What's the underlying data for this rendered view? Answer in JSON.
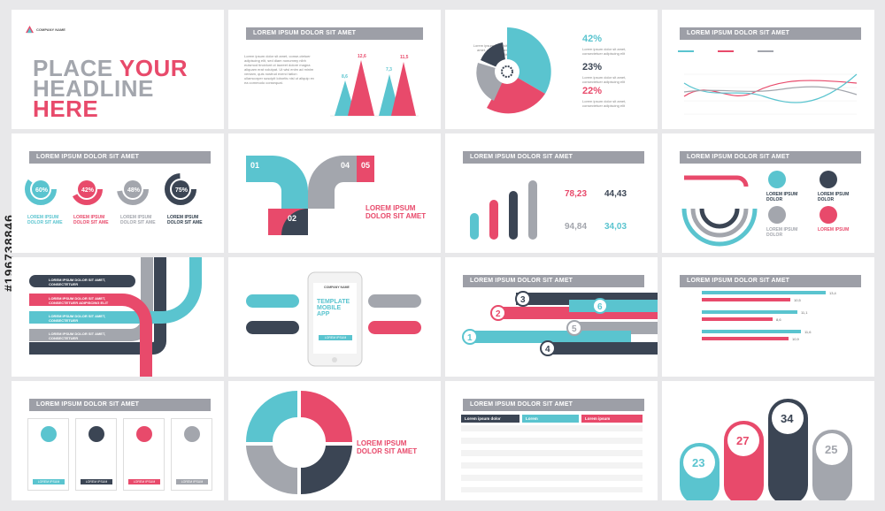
{
  "watermark": "#196738846",
  "colors": {
    "teal": "#5ac4cf",
    "pink": "#e84a6b",
    "navy": "#3b4554",
    "grey": "#a3a6ad"
  },
  "s1": {
    "company": "COMPANY NAME",
    "headline_1": "PLACE",
    "headline_2": "YOUR",
    "headline_3": "HEADLINE",
    "headline_4": "HERE"
  },
  "s2": {
    "title": "LOREM IPSUM DOLOR SIT AMET",
    "v1": "8,6",
    "v2": "12,6",
    "v3": "7,3",
    "v4": "11,5"
  },
  "s3": {
    "p1": "42%",
    "p2": "23%",
    "p3": "22%"
  },
  "s4": {
    "title": "LOREM IPSUM DOLOR SIT AMET"
  },
  "s5": {
    "title": "LOREM IPSUM DOLOR SIT AMET",
    "d1": "60%",
    "d2": "42%",
    "d3": "48%",
    "d4": "75%",
    "cap": "LOREM IPSUM DOLOR SIT AME"
  },
  "s6": {
    "n1": "01",
    "n2": "02",
    "n3": "03",
    "n4": "04",
    "n5": "05",
    "heading": "LOREM IPSUM DOLOR SIT AMET"
  },
  "s7": {
    "title": "LOREM IPSUM DOLOR SIT AMET",
    "k1": "78,23",
    "k2": "44,43",
    "k3": "94,84",
    "k4": "34,03"
  },
  "s8": {
    "title": "LOREM IPSUM DOLOR SIT AMET",
    "a": "LOREM IPSUM DOLOR",
    "b": "LOREM IPSUM DOLOR",
    "c": "LOREM IPSUM DOLOR",
    "d": "LOREM IPSUM"
  },
  "s9": {
    "items": [
      "LOREM IPSUM DOLOR SIT AMET, CONSECTETUER",
      "LOREM IPSUM DOLOR SIT AMET, CONSECTETUER ADIPISCING ELIT",
      "LOREM IPSUM DOLOR SIT AMET, CONSECTETUER",
      "LOREM IPSUM DOLOR SIT AMET, CONSECTETUER"
    ]
  },
  "s10": {
    "company": "COMPANY NAME",
    "t1": "TEMPLATE",
    "t2": "MOBILE",
    "t3": "APP",
    "btn": "LOREM IPSUM"
  },
  "s11": {
    "title": "LOREM IPSUM DOLOR SIT AMET",
    "steps": [
      "1",
      "2",
      "3",
      "4",
      "5",
      "6"
    ]
  },
  "s12": {
    "title": "LOREM IPSUM DOLOR SIT AMET",
    "vals": [
      "13,4",
      "10,5",
      "11,1",
      "8,6",
      "11,6",
      "10,9"
    ]
  },
  "s13": {
    "title": "LOREM IPSUM DOLOR SIT AMET",
    "btn": "LOREM IPSUM"
  },
  "s14": {
    "heading": "LOREM IPSUM DOLOR SIT AMET"
  },
  "s15": {
    "title": "LOREM IPSUM DOLOR SIT AMET",
    "h1": "Lorem ipsum dolor",
    "h2": "Lorem",
    "h3": "Lorem ipsum"
  },
  "s16": {
    "v1": "23",
    "v2": "27",
    "v3": "34",
    "v4": "25"
  }
}
